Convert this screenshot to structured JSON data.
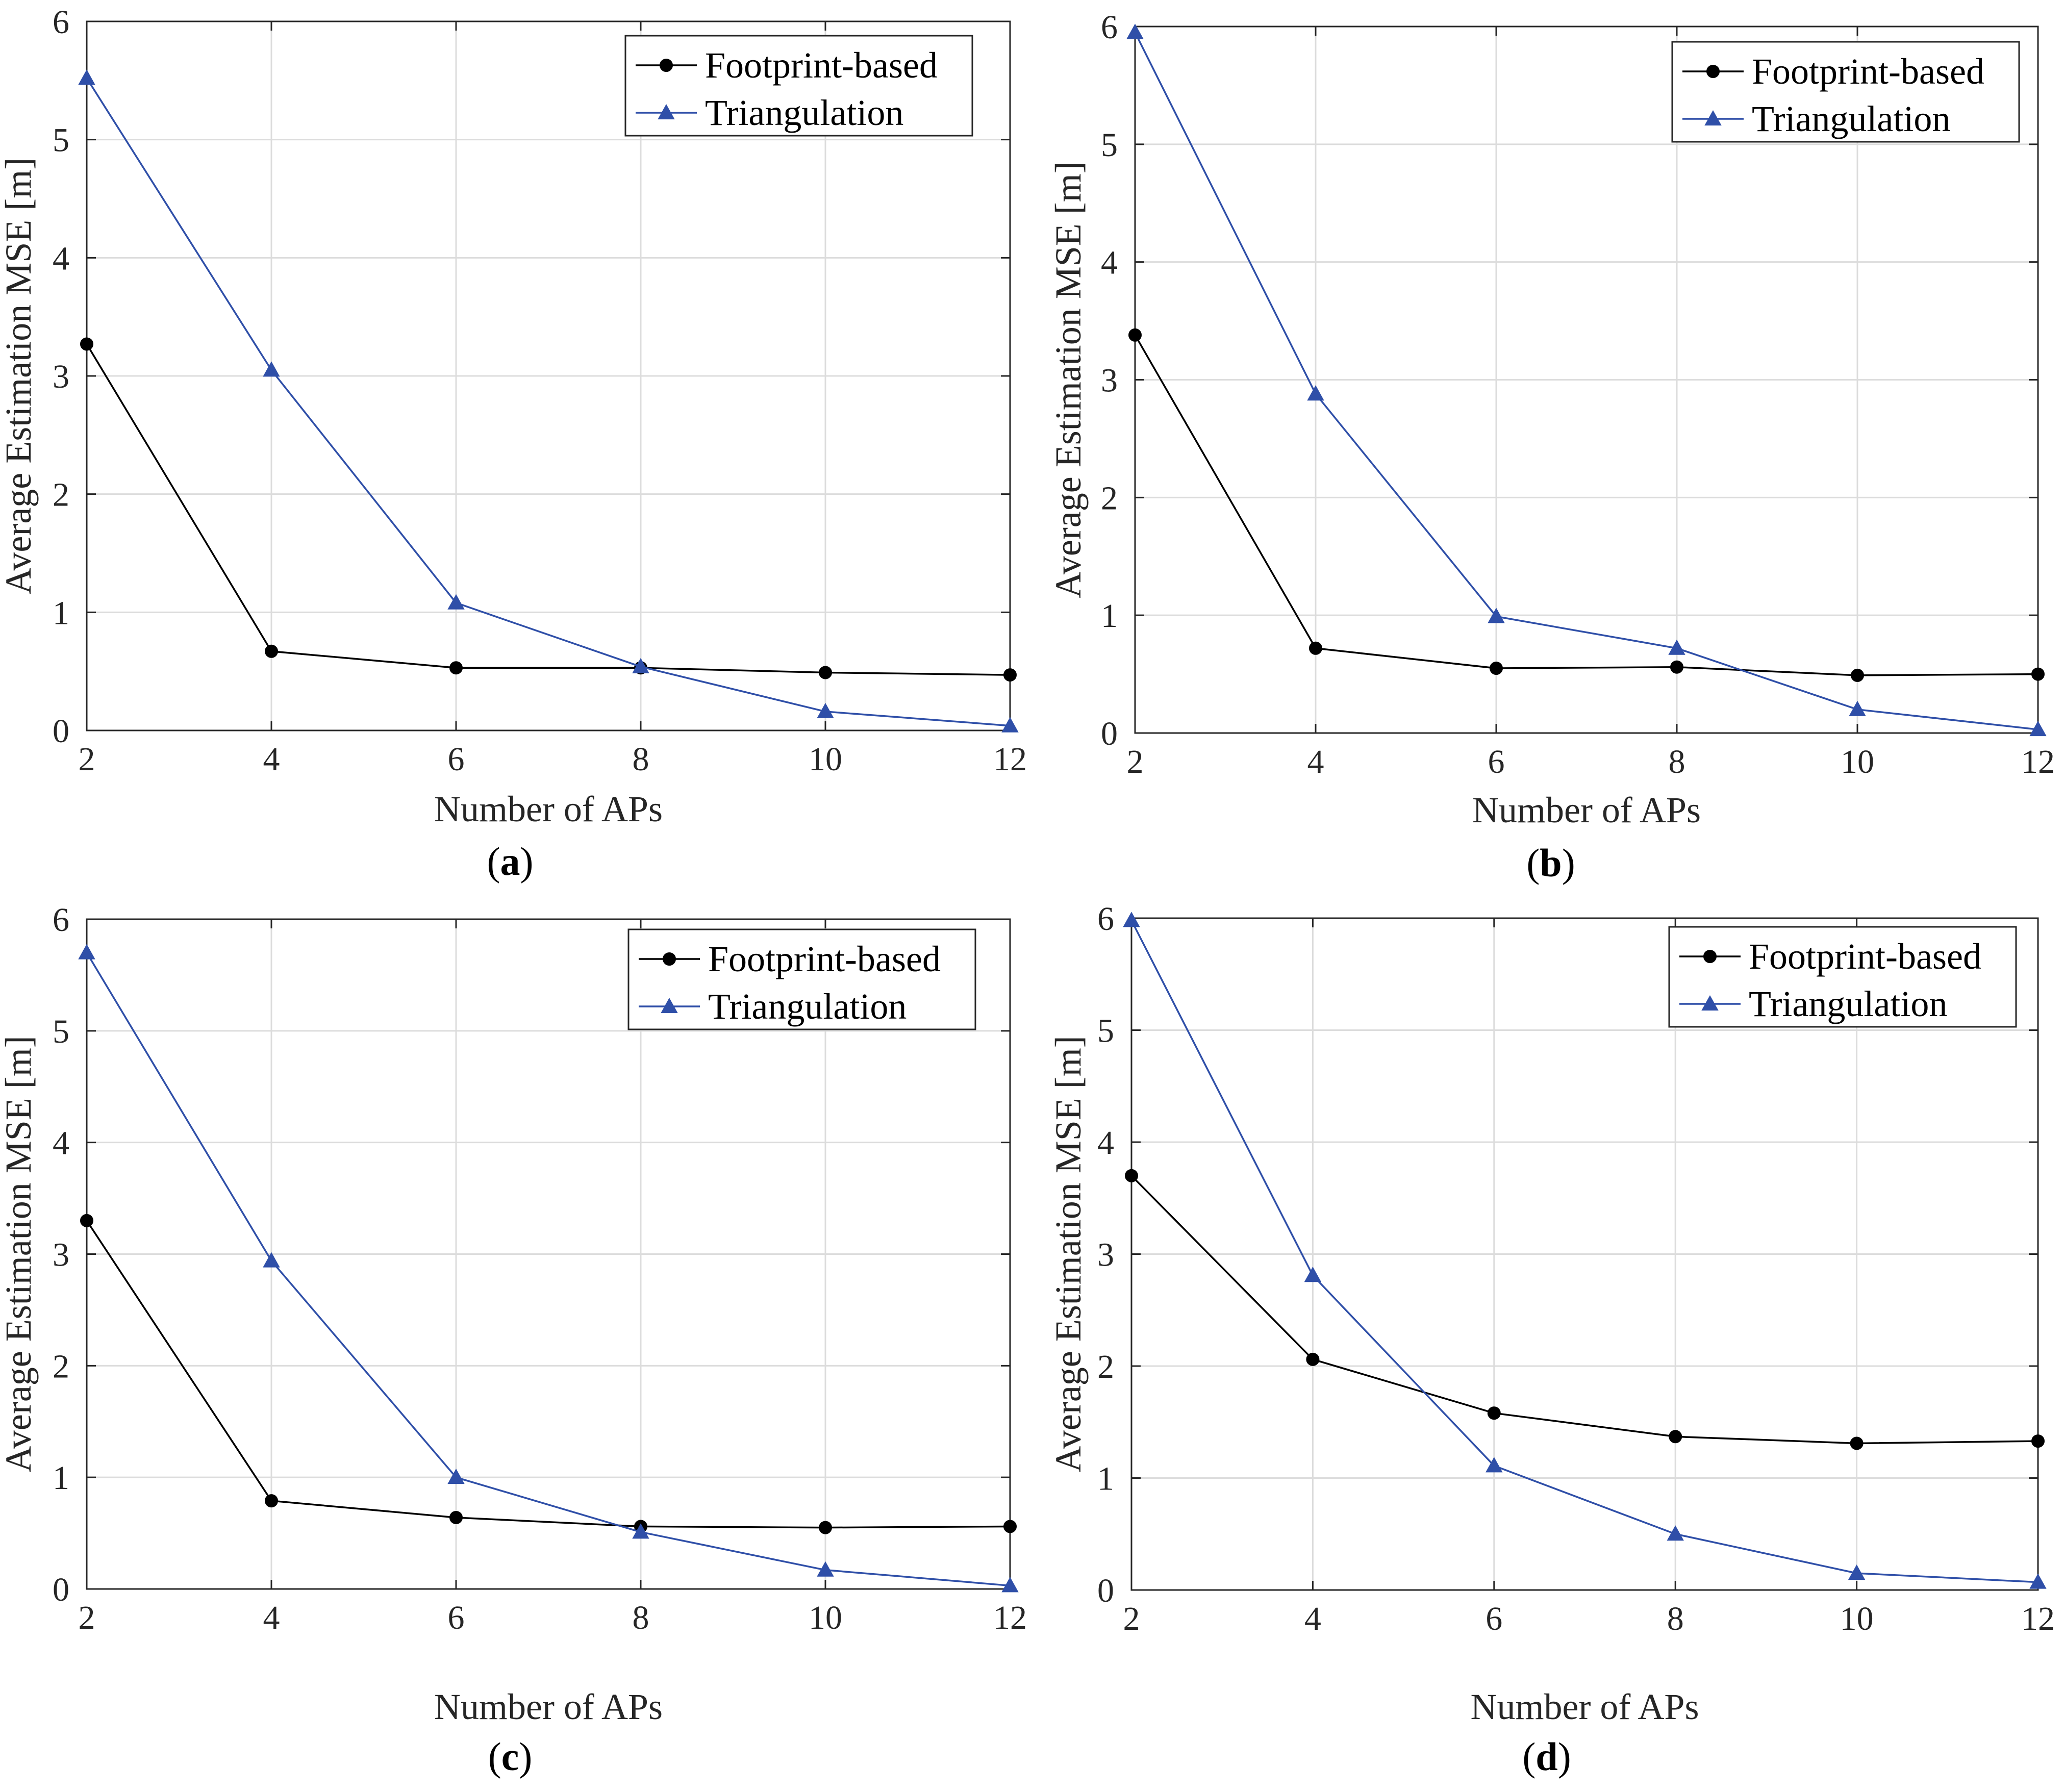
{
  "figure": {
    "colors": {
      "footprint": "#000000",
      "triangulation": "#2f4fa8",
      "grid": "#dcdcdc",
      "axis": "#262626"
    }
  },
  "chart_data": [
    {
      "type": "line",
      "panel": "a",
      "caption": "a",
      "xlabel": "Number of APs",
      "ylabel": "Average Estimation MSE [m]",
      "x": [
        2,
        4,
        6,
        8,
        10,
        12
      ],
      "xlim": [
        2,
        12
      ],
      "ylim": [
        0,
        6
      ],
      "xticks": [
        "2",
        "4",
        "6",
        "8",
        "10",
        "12"
      ],
      "yticks": [
        "0",
        "1",
        "2",
        "3",
        "4",
        "5",
        "6"
      ],
      "grid": true,
      "legend_position": "top-right",
      "series": [
        {
          "name": "Footprint-based",
          "marker": "circle",
          "values": [
            3.27,
            0.67,
            0.53,
            0.53,
            0.49,
            0.47
          ]
        },
        {
          "name": "Triangulation",
          "marker": "triangle",
          "values": [
            5.52,
            3.05,
            1.08,
            0.54,
            0.16,
            0.04
          ]
        }
      ]
    },
    {
      "type": "line",
      "panel": "b",
      "caption": "b",
      "xlabel": "Number of APs",
      "ylabel": "Average Estimation MSE [m]",
      "x": [
        2,
        4,
        6,
        8,
        10,
        12
      ],
      "xlim": [
        2,
        12
      ],
      "ylim": [
        0,
        6
      ],
      "xticks": [
        "2",
        "4",
        "6",
        "8",
        "10",
        "12"
      ],
      "yticks": [
        "0",
        "1",
        "2",
        "3",
        "4",
        "5",
        "6"
      ],
      "grid": true,
      "legend_position": "top-right",
      "series": [
        {
          "name": "Footprint-based",
          "marker": "circle",
          "values": [
            3.38,
            0.72,
            0.55,
            0.56,
            0.49,
            0.5
          ]
        },
        {
          "name": "Triangulation",
          "marker": "triangle",
          "values": [
            5.95,
            2.88,
            0.99,
            0.72,
            0.2,
            0.03
          ]
        }
      ]
    },
    {
      "type": "line",
      "panel": "c",
      "caption": "c",
      "xlabel": "Number of APs",
      "ylabel": "Average Estimation MSE [m]",
      "x": [
        2,
        4,
        6,
        8,
        10,
        12
      ],
      "xlim": [
        2,
        12
      ],
      "ylim": [
        0,
        6
      ],
      "xticks": [
        "2",
        "4",
        "6",
        "8",
        "10",
        "12"
      ],
      "yticks": [
        "0",
        "1",
        "2",
        "3",
        "4",
        "5",
        "6"
      ],
      "grid": true,
      "legend_position": "top-right",
      "series": [
        {
          "name": "Footprint-based",
          "marker": "circle",
          "values": [
            3.3,
            0.79,
            0.64,
            0.56,
            0.55,
            0.56
          ]
        },
        {
          "name": "Triangulation",
          "marker": "triangle",
          "values": [
            5.7,
            2.94,
            1.0,
            0.51,
            0.17,
            0.03
          ]
        }
      ]
    },
    {
      "type": "line",
      "panel": "d",
      "caption": "d",
      "xlabel": "Number of APs",
      "ylabel": "Average Estimation MSE [m]",
      "x": [
        2,
        4,
        6,
        8,
        10,
        12
      ],
      "xlim": [
        2,
        12
      ],
      "ylim": [
        0,
        6
      ],
      "xticks": [
        "2",
        "4",
        "6",
        "8",
        "10",
        "12"
      ],
      "yticks": [
        "0",
        "1",
        "2",
        "3",
        "4",
        "5",
        "6"
      ],
      "grid": true,
      "legend_position": "top-right",
      "series": [
        {
          "name": "Footprint-based",
          "marker": "circle",
          "values": [
            3.7,
            2.06,
            1.58,
            1.37,
            1.31,
            1.33
          ]
        },
        {
          "name": "Triangulation",
          "marker": "triangle",
          "values": [
            5.98,
            2.81,
            1.11,
            0.5,
            0.15,
            0.07
          ]
        }
      ]
    }
  ]
}
